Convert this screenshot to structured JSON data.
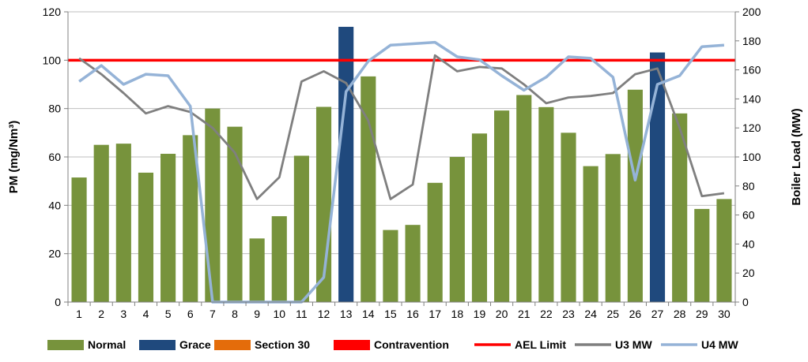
{
  "chart_data": {
    "type": "bar",
    "categories": [
      "1",
      "2",
      "3",
      "4",
      "5",
      "6",
      "7",
      "8",
      "9",
      "10",
      "11",
      "12",
      "13",
      "14",
      "15",
      "16",
      "17",
      "18",
      "19",
      "20",
      "21",
      "22",
      "23",
      "24",
      "25",
      "26",
      "27",
      "28",
      "29",
      "30"
    ],
    "ylabel": "PM (mg/Nm³)",
    "ylim": [
      0,
      120
    ],
    "yticks": [
      0,
      20,
      40,
      60,
      80,
      100,
      120
    ],
    "y2label": "Boiler Load (MW)",
    "y2lim": [
      0,
      200
    ],
    "y2ticks": [
      0,
      20,
      40,
      60,
      80,
      100,
      120,
      140,
      160,
      180,
      200
    ],
    "grid": "horizontal",
    "legend_position": "bottom",
    "bar_series": {
      "values": [
        51.5,
        65,
        65.5,
        53.5,
        61.3,
        69,
        80,
        72.5,
        26.3,
        35.5,
        60.5,
        80.7,
        113.8,
        93.3,
        29.8,
        31.9,
        49.3,
        60,
        69.7,
        79.2,
        85.6,
        80.6,
        70,
        56.2,
        61.2,
        87.8,
        103.2,
        78,
        38.5,
        42.6
      ],
      "status": [
        "Normal",
        "Normal",
        "Normal",
        "Normal",
        "Normal",
        "Normal",
        "Normal",
        "Normal",
        "Normal",
        "Normal",
        "Normal",
        "Normal",
        "Grace",
        "Normal",
        "Normal",
        "Normal",
        "Normal",
        "Normal",
        "Normal",
        "Normal",
        "Normal",
        "Normal",
        "Normal",
        "Normal",
        "Normal",
        "Normal",
        "Grace",
        "Normal",
        "Normal",
        "Normal"
      ]
    },
    "bar_colors": {
      "Normal": "#77933c",
      "Grace": "#1f497d",
      "Section 30": "#e46c0a",
      "Contravention": "#ff0000"
    },
    "aelLimit": 100,
    "aelColor": "#ff0000",
    "lines": [
      {
        "name": "U3 MW",
        "color": "#7f7f7f",
        "values": [
          168,
          157,
          144,
          130,
          135,
          131,
          120,
          103,
          71,
          86,
          152,
          159,
          151,
          125,
          71,
          81,
          170,
          159,
          162,
          161,
          150,
          137,
          141,
          142,
          144,
          157,
          161,
          120,
          73,
          75
        ]
      },
      {
        "name": "U4 MW",
        "color": "#95b3d7",
        "values": [
          152,
          163,
          150,
          157,
          156,
          135,
          0,
          0,
          0,
          0,
          0,
          17,
          145,
          166,
          177,
          178,
          179,
          169,
          167,
          156,
          146,
          155,
          169,
          168,
          155,
          84,
          150,
          156,
          176,
          177
        ]
      }
    ],
    "legend": [
      {
        "label": "Normal",
        "kind": "bar",
        "color": "#77933c"
      },
      {
        "label": "Grace",
        "kind": "bar",
        "color": "#1f497d"
      },
      {
        "label": "Section 30",
        "kind": "bar",
        "color": "#e46c0a"
      },
      {
        "label": "Contravention",
        "kind": "bar",
        "color": "#ff0000"
      },
      {
        "label": "AEL Limit",
        "kind": "line",
        "color": "#ff0000"
      },
      {
        "label": "U3 MW",
        "kind": "line",
        "color": "#7f7f7f"
      },
      {
        "label": "U4 MW",
        "kind": "line",
        "color": "#95b3d7"
      }
    ]
  }
}
